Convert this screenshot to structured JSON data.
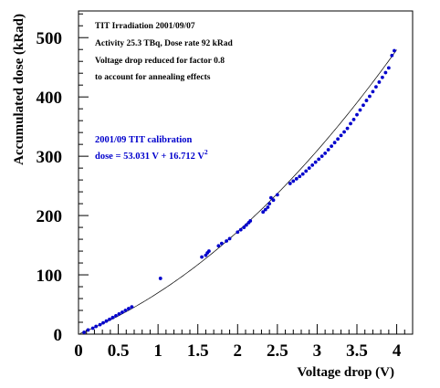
{
  "chart_data": {
    "type": "scatter",
    "title": "",
    "xlabel": "Voltage drop (V)",
    "ylabel": "Accumulated dose (kRad)",
    "xlim": [
      0,
      4.2
    ],
    "ylim": [
      0,
      545
    ],
    "xticks": [
      {
        "value": 0,
        "label": "0"
      },
      {
        "value": 0.5,
        "label": "0.5"
      },
      {
        "value": 1,
        "label": "1"
      },
      {
        "value": 1.5,
        "label": "1.5"
      },
      {
        "value": 2,
        "label": "2"
      },
      {
        "value": 2.5,
        "label": "2.5"
      },
      {
        "value": 3,
        "label": "3"
      },
      {
        "value": 3.5,
        "label": "3.5"
      },
      {
        "value": 4,
        "label": "4"
      }
    ],
    "yticks": [
      {
        "value": 0,
        "label": "0"
      },
      {
        "value": 100,
        "label": "100"
      },
      {
        "value": 200,
        "label": "200"
      },
      {
        "value": 300,
        "label": "300"
      },
      {
        "value": 400,
        "label": "400"
      },
      {
        "value": 500,
        "label": "500"
      }
    ],
    "grid": false,
    "annotations": [
      "TIT Irradiation 2001/09/07",
      "Activity 25.3 TBq, Dose rate 92 kRad",
      "Voltage drop reduced for factor 0.8",
      "to account for annealing effects"
    ],
    "fit_label": "2001/09 TIT calibration",
    "fit_formula": {
      "text": "dose = 53.031 V + 16.712 V",
      "superscript": "2",
      "a": 53.031,
      "b": 16.712
    },
    "series": [
      {
        "color": "#0000cc",
        "x": [
          0.07,
          0.12,
          0.18,
          0.22,
          0.27,
          0.31,
          0.35,
          0.39,
          0.43,
          0.47,
          0.51,
          0.55,
          0.59,
          0.63,
          0.67,
          1.03,
          1.55,
          1.6,
          1.62,
          1.64,
          1.76,
          1.8,
          1.86,
          1.9,
          2.0,
          2.04,
          2.08,
          2.11,
          2.14,
          2.16,
          2.32,
          2.35,
          2.38,
          2.4,
          2.42,
          2.45,
          2.5,
          2.66,
          2.7,
          2.74,
          2.78,
          2.82,
          2.86,
          2.9,
          2.94,
          2.98,
          3.02,
          3.06,
          3.1,
          3.14,
          3.18,
          3.22,
          3.26,
          3.3,
          3.34,
          3.38,
          3.42,
          3.46,
          3.5,
          3.54,
          3.58,
          3.62,
          3.66,
          3.7,
          3.74,
          3.78,
          3.82,
          3.86,
          3.9,
          3.94,
          3.97
        ],
        "y": [
          3,
          7,
          10,
          13,
          16,
          19,
          22,
          25,
          28,
          31,
          34,
          37,
          40,
          43,
          46,
          94,
          130,
          133,
          137,
          140,
          149,
          153,
          157,
          161,
          172,
          176,
          180,
          184,
          188,
          191,
          206,
          210,
          214,
          220,
          230,
          226,
          235,
          254,
          258,
          262,
          266,
          270,
          275,
          280,
          285,
          290,
          295,
          300,
          305,
          311,
          317,
          323,
          329,
          335,
          341,
          347,
          355,
          362,
          370,
          378,
          386,
          394,
          401,
          409,
          417,
          425,
          433,
          441,
          449,
          470,
          478
        ]
      }
    ]
  }
}
